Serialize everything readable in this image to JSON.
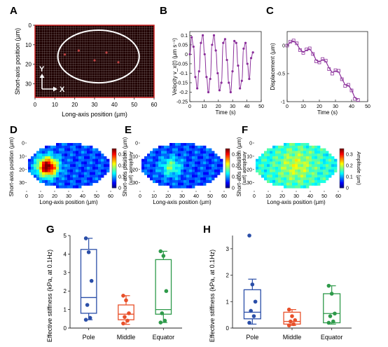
{
  "panel_labels": [
    "A",
    "B",
    "C",
    "D",
    "E",
    "F",
    "G",
    "H"
  ],
  "chart_data": [
    {
      "panel": "A",
      "type": "heatmap",
      "xlabel": "Long-axis position (µm)",
      "ylabel": "Short-axis position (µm)",
      "xlim": [
        0,
        60
      ],
      "ylim": [
        0,
        37
      ],
      "xticks": [
        "0",
        "10",
        "20",
        "30",
        "40",
        "50",
        "60"
      ],
      "yticks": [
        "0",
        "10",
        "20",
        "30"
      ],
      "x_arrow_label": "X",
      "y_arrow_label": "Y",
      "ellipse": {
        "center": [
          32,
          16
        ],
        "semi_axes": [
          20.5,
          13.5
        ]
      },
      "colors": {
        "background": "#200202",
        "grid": "#c8c8c8",
        "frame": "#cc2222",
        "ellipse": "#ffffff",
        "label": "#ffffff"
      }
    },
    {
      "panel": "B",
      "type": "line",
      "xlabel": "Time (s)",
      "ylabel": "Velocity v_x(t) (µm s⁻¹)",
      "xlim": [
        0,
        50
      ],
      "ylim": [
        -0.25,
        0.12
      ],
      "xticks": [
        "0",
        "10",
        "20",
        "30",
        "40",
        "50"
      ],
      "yticks": [
        "-0.25",
        "-0.2",
        "-0.15",
        "-0.1",
        "-0.05",
        "0",
        "0.05",
        "0.1"
      ],
      "color": "#8a2e9a",
      "x": [
        0.0,
        1.3,
        2.6,
        3.9,
        5.2,
        6.5,
        7.8,
        9.1,
        10.4,
        11.7,
        13.0,
        14.3,
        15.6,
        16.9,
        18.2,
        19.5,
        20.8,
        22.1,
        23.4,
        24.7,
        26.0,
        27.3,
        28.6,
        29.9,
        31.2,
        32.5,
        33.8,
        35.1,
        36.4,
        37.7,
        39.0,
        40.3,
        41.6,
        42.9,
        44.2
      ],
      "y": [
        0.0,
        0.09,
        0.04,
        -0.12,
        -0.18,
        -0.09,
        0.06,
        0.1,
        0.0,
        -0.12,
        -0.2,
        -0.13,
        0.05,
        0.1,
        0.02,
        -0.1,
        -0.19,
        -0.15,
        0.06,
        0.08,
        -0.03,
        -0.15,
        -0.2,
        -0.09,
        0.07,
        0.06,
        -0.06,
        -0.18,
        -0.14,
        0.03,
        0.06,
        -0.05,
        -0.13,
        -0.02,
        0.01
      ]
    },
    {
      "panel": "C",
      "type": "line",
      "xlabel": "Time (s)",
      "ylabel": "Displacement (µm)",
      "xlim": [
        0,
        50
      ],
      "ylim": [
        -1.0,
        0.25
      ],
      "xticks": [
        "0",
        "10",
        "20",
        "30",
        "40",
        "50"
      ],
      "yticks": [
        "-1",
        "-0.5",
        "0"
      ],
      "color": "#8a2e9a",
      "series": [
        {
          "x": [
            0,
            2,
            4,
            6,
            8,
            10,
            12,
            14,
            16,
            18,
            20,
            22,
            24,
            26,
            28,
            30,
            32,
            34,
            36,
            38,
            40,
            42,
            44
          ],
          "y": [
            0.0,
            0.07,
            0.09,
            0.04,
            -0.08,
            -0.13,
            -0.07,
            -0.05,
            -0.15,
            -0.28,
            -0.3,
            -0.24,
            -0.27,
            -0.42,
            -0.5,
            -0.44,
            -0.45,
            -0.6,
            -0.72,
            -0.7,
            -0.8,
            -0.95,
            -0.97
          ]
        },
        {
          "x": [
            0,
            2,
            4,
            6,
            8,
            10,
            12,
            14,
            16,
            18,
            20,
            22,
            24,
            26,
            28,
            30,
            32,
            34,
            36,
            38,
            40,
            42,
            44
          ],
          "y": [
            0.0,
            0.06,
            0.08,
            0.03,
            -0.07,
            -0.12,
            -0.08,
            -0.06,
            -0.14,
            -0.26,
            -0.29,
            -0.25,
            -0.28,
            -0.4,
            -0.48,
            -0.45,
            -0.47,
            -0.59,
            -0.7,
            -0.71,
            -0.79,
            -0.93,
            -0.96
          ]
        }
      ]
    },
    {
      "panel": "D",
      "type": "heatmap",
      "xlabel": "Long-axis position (µm)",
      "ylabel": "Short-axis position (µm)",
      "colorbar_label": "Amplitude (µm)",
      "xlim": [
        0,
        60
      ],
      "ylim": [
        0,
        36
      ],
      "xticks": [
        "0",
        "10",
        "20",
        "30",
        "40",
        "50",
        "60"
      ],
      "yticks": [
        "0",
        "10",
        "20",
        "30"
      ],
      "colorbar_ticks": [
        "0",
        "0.1",
        "0.2",
        "0.3"
      ],
      "clim": [
        0,
        0.35
      ],
      "field": {
        "base": 0.07,
        "hotspots": [
          {
            "x": 15,
            "y": 18,
            "amp": 0.3,
            "sigma": 5
          }
        ]
      }
    },
    {
      "panel": "E",
      "type": "heatmap",
      "xlabel": "Long-axis position (µm)",
      "ylabel": "Short-axis position (µm)",
      "colorbar_label": "Amplitude (µm)",
      "xlim": [
        0,
        60
      ],
      "ylim": [
        0,
        36
      ],
      "xticks": [
        "0",
        "10",
        "20",
        "30",
        "40",
        "50",
        "60"
      ],
      "yticks": [
        "0",
        "10",
        "20",
        "30"
      ],
      "colorbar_ticks": [
        "0",
        "0.1",
        "0.2",
        "0.3"
      ],
      "clim": [
        0,
        0.35
      ],
      "field": {
        "base": 0.07,
        "hotspots": [
          {
            "x": 22,
            "y": 18,
            "amp": 0.1,
            "sigma": 5
          }
        ]
      }
    },
    {
      "panel": "F",
      "type": "heatmap",
      "xlabel": "Long-axis position (µm)",
      "ylabel": "Short-axis position (µm)",
      "colorbar_label": "Amplitude (µm)",
      "xlim": [
        0,
        60
      ],
      "ylim": [
        0,
        36
      ],
      "xticks": [
        "0",
        "10",
        "20",
        "30",
        "40",
        "50",
        "60"
      ],
      "yticks": [
        "0",
        "10",
        "20",
        "30"
      ],
      "colorbar_ticks": [
        "0",
        "0.1",
        "0.2",
        "0.3"
      ],
      "clim": [
        0,
        0.35
      ],
      "field": {
        "base": 0.14,
        "hotspots": [
          {
            "x": 30,
            "y": 17,
            "amp": 0.06,
            "sigma": 9
          }
        ]
      }
    },
    {
      "panel": "G",
      "type": "box",
      "ylabel": "Effective stiffness (kPa, at 0.1Hz)",
      "ylim": [
        0,
        5
      ],
      "yticks": [
        "0",
        "1",
        "2",
        "3",
        "4",
        "5"
      ],
      "categories": [
        "Pole",
        "Middle",
        "Equator"
      ],
      "colors": [
        "#2a4ea8",
        "#e8502a",
        "#2e9a4a"
      ],
      "boxes": [
        {
          "q1": 0.8,
          "median": 1.65,
          "q3": 4.25,
          "whisker_low": 0.45,
          "whisker_high": 4.85
        },
        {
          "q1": 0.45,
          "median": 0.75,
          "q3": 1.25,
          "whisker_low": 0.2,
          "whisker_high": 1.75
        },
        {
          "q1": 0.75,
          "median": 1.0,
          "q3": 3.7,
          "whisker_low": 0.3,
          "whisker_high": 4.15
        }
      ],
      "points": [
        [
          4.85,
          4.1,
          2.55,
          1.25,
          0.55,
          0.45
        ],
        [
          1.75,
          1.5,
          0.8,
          0.6,
          0.4,
          0.25
        ],
        [
          4.15,
          3.9,
          2.0,
          0.8,
          0.4,
          0.3
        ]
      ]
    },
    {
      "panel": "H",
      "type": "box",
      "ylabel": "Effective stiffness (kPa, at 0.1Hz)",
      "ylim": [
        0,
        3.5
      ],
      "yticks": [
        "0",
        "1",
        "2",
        "3"
      ],
      "categories": [
        "Pole",
        "Middle",
        "Equator"
      ],
      "colors": [
        "#2a4ea8",
        "#e8502a",
        "#2e9a4a"
      ],
      "boxes": [
        {
          "q1": 0.35,
          "median": 0.6,
          "q3": 1.45,
          "whisker_low": 0.15,
          "whisker_high": 1.85
        },
        {
          "q1": 0.15,
          "median": 0.25,
          "q3": 0.6,
          "whisker_low": 0.1,
          "whisker_high": 0.7
        },
        {
          "q1": 0.2,
          "median": 0.55,
          "q3": 1.3,
          "whisker_low": 0.15,
          "whisker_high": 1.6
        }
      ],
      "points": [
        [
          3.5,
          1.65,
          1.0,
          0.65,
          0.45,
          0.2
        ],
        [
          0.7,
          0.45,
          0.3,
          0.25,
          0.15,
          0.1
        ],
        [
          1.6,
          1.3,
          0.55,
          0.45,
          0.25,
          0.2
        ]
      ]
    }
  ]
}
